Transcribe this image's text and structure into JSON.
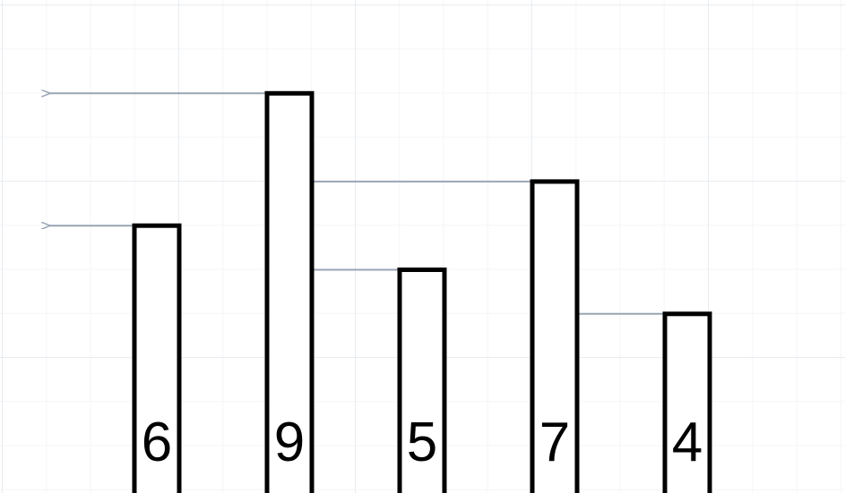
{
  "chart_data": {
    "type": "bar",
    "values": [
      6,
      9,
      5,
      7,
      4
    ],
    "labels": [
      "6",
      "9",
      "5",
      "7",
      "4"
    ],
    "arrows": [
      {
        "from": 1,
        "to": null
      },
      {
        "from": 0,
        "to": null
      },
      {
        "from": 3,
        "to": 1
      },
      {
        "from": 2,
        "to": 1
      },
      {
        "from": 4,
        "to": 3
      }
    ]
  },
  "colors": {
    "bar_stroke": "#000000",
    "bar_fill": "#ffffff",
    "arrow": "#9aa5b4"
  }
}
